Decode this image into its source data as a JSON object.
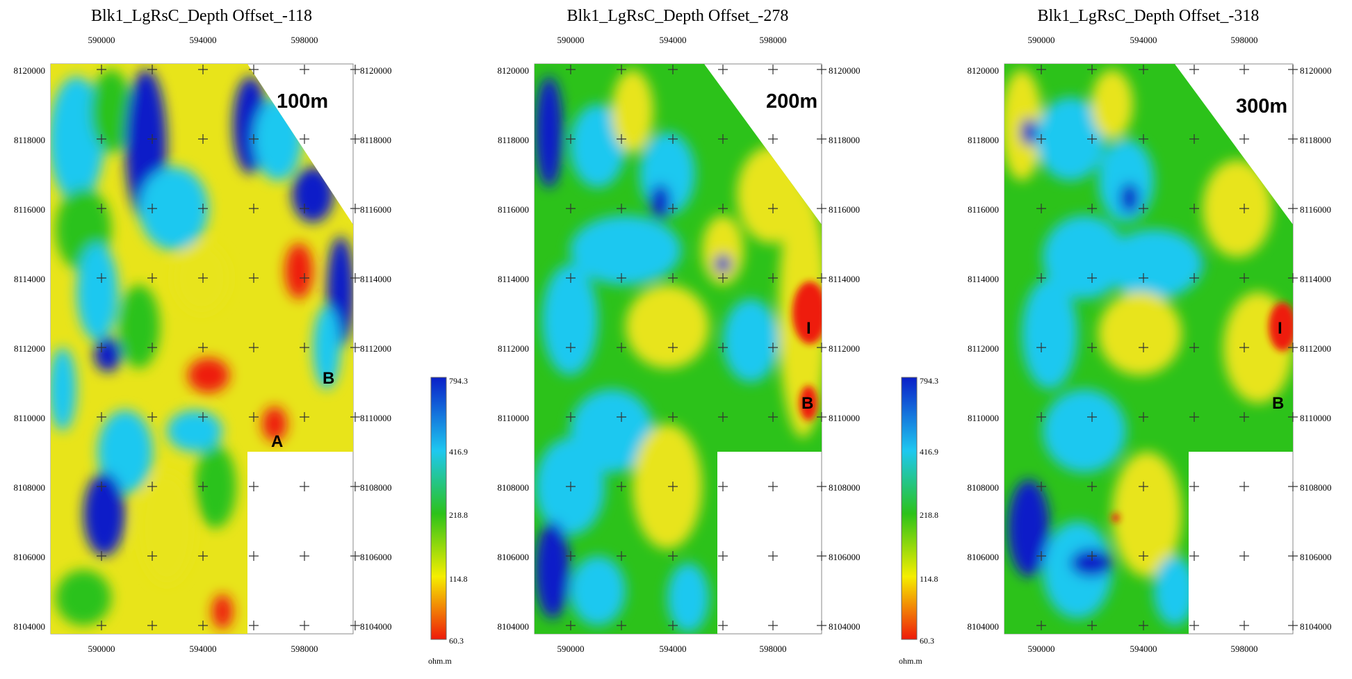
{
  "legend": {
    "ticks": [
      "794.3",
      "416.9",
      "218.8",
      "114.8",
      "60.3"
    ],
    "unit": "ohm.m",
    "colors": [
      "#0a1fc8",
      "#1ec8f0",
      "#2cc21a",
      "#f5ee00",
      "#ee1a0a"
    ]
  },
  "panels": [
    {
      "title": "Blk1_LgRsC_Depth Offset_-118",
      "depth_label": "100m",
      "x_ticks": [
        "590000",
        "594000",
        "598000"
      ],
      "y_ticks": [
        "8120000",
        "8118000",
        "8116000",
        "8114000",
        "8112000",
        "8110000",
        "8108000",
        "8106000",
        "8104000"
      ],
      "anomalies": [
        "A",
        "B"
      ]
    },
    {
      "title": "Blk1_LgRsC_Depth Offset_-278",
      "depth_label": "200m",
      "x_ticks": [
        "590000",
        "594000",
        "598000"
      ],
      "y_ticks": [
        "8120000",
        "8118000",
        "8116000",
        "8114000",
        "8112000",
        "8110000",
        "8108000",
        "8106000",
        "8104000"
      ],
      "anomalies": [
        "I",
        "B"
      ]
    },
    {
      "title": "Blk1_LgRsC_Depth Offset_-318",
      "depth_label": "300m",
      "x_ticks": [
        "590000",
        "594000",
        "598000"
      ],
      "y_ticks": [
        "8120000",
        "8118000",
        "8116000",
        "8114000",
        "8112000",
        "8110000",
        "8108000",
        "8106000",
        "8104000"
      ],
      "anomalies": [
        "I",
        "B"
      ]
    }
  ]
}
